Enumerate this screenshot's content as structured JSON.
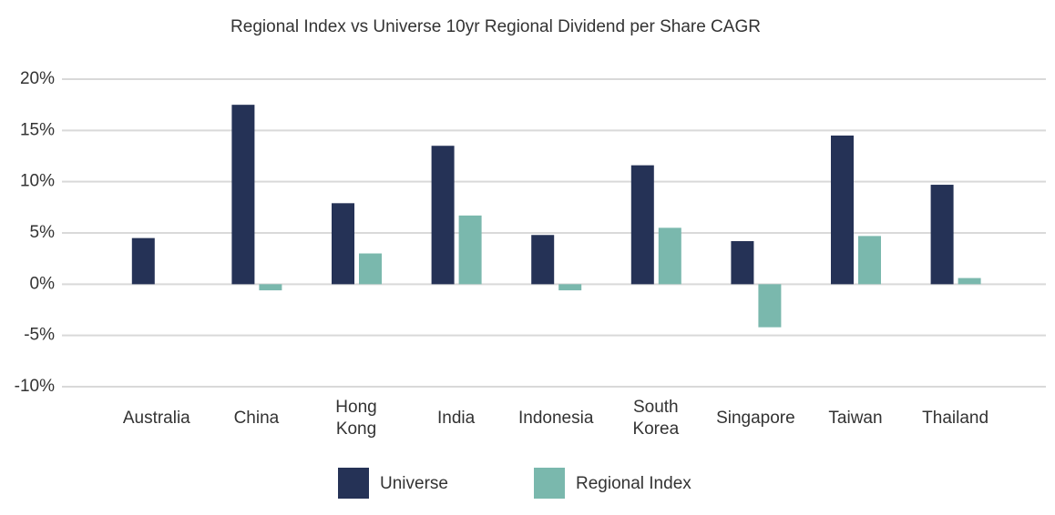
{
  "chart_data": {
    "type": "bar",
    "title": "Regional Index vs Universe 10yr Regional Dividend per Share CAGR",
    "categories": [
      "Australia",
      "China",
      "Hong Kong",
      "India",
      "Indonesia",
      "South Korea",
      "Singapore",
      "Taiwan",
      "Thailand"
    ],
    "series": [
      {
        "name": "Universe",
        "color": "#253256",
        "values": [
          4.5,
          17.5,
          7.9,
          13.5,
          4.8,
          11.6,
          4.2,
          14.5,
          9.7
        ]
      },
      {
        "name": "Regional Index",
        "color": "#7ab8ad",
        "values": [
          null,
          -0.6,
          3.0,
          6.7,
          -0.6,
          5.5,
          -4.2,
          4.7,
          0.6
        ]
      }
    ],
    "ylim": [
      -10,
      20
    ],
    "yticks": [
      {
        "value": -10,
        "label": "-10%"
      },
      {
        "value": -5,
        "label": "-5%"
      },
      {
        "value": 0,
        "label": "0%"
      },
      {
        "value": 5,
        "label": "5%"
      },
      {
        "value": 10,
        "label": "10%"
      },
      {
        "value": 15,
        "label": "15%"
      },
      {
        "value": 20,
        "label": "20%"
      }
    ],
    "grid": true
  }
}
